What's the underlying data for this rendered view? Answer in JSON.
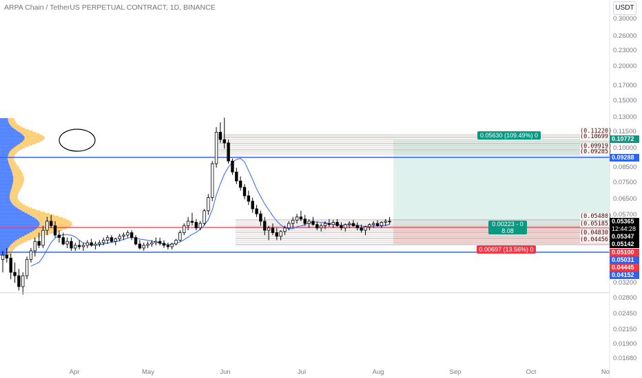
{
  "header": {
    "symbol_title": "ARPA Chain / TetherUS PERPETUAL CONTRACT, 1D, BINANCE"
  },
  "currency_button": "USDT",
  "price_axis_labels": [
    "0.30000",
    "0.26000",
    "0.23000",
    "0.20000",
    "0.17000",
    "0.15000",
    "0.13000",
    "0.11500",
    "0.10000",
    "0.08500",
    "0.07500",
    "0.06500",
    "0.05700",
    "0.03200",
    "0.02800",
    "0.02450",
    "0.02150",
    "0.01900",
    "0.01680"
  ],
  "price_tags": {
    "t1": "0.10772",
    "t2": "0.09288",
    "t3": "0.05365",
    "t3b": "12:44:28",
    "t4": "0.05347",
    "t5": "0.05142",
    "t6": "0.05100",
    "t7": "0.05031",
    "t8": "0.04445",
    "t9": "0.04152"
  },
  "position_labels": {
    "target": "0.05630 (109.49%) 0",
    "entry_a": "0.00223 - 0",
    "entry_b": "8.08",
    "stop": "0.00697 (13.56%) 0"
  },
  "level_labels": [
    "(0.11220)",
    "(0.10699)",
    "(0.09919)",
    "(0.09285)",
    "(0.05480)",
    "(0.05185)",
    "(0.04830)",
    "(0.04456)"
  ],
  "colors": {
    "up_candle": "#ffffff",
    "down_candle": "#000000",
    "vp_up": "#2962ff",
    "vp_down": "#f7c35f",
    "target_fill": "#dff1ec",
    "stop_fill": "#f8d7d7",
    "blue_line": "#2962ff",
    "red_line": "#f23645",
    "green_tag": "#089981"
  },
  "chart_data": {
    "type": "candlestick",
    "title": "ARPA Chain / TetherUS PERPETUAL CONTRACT, 1D, BINANCE",
    "x_ticks": [
      "Apr",
      "May",
      "Jun",
      "Jul",
      "Aug",
      "Sep",
      "Oct",
      "No"
    ],
    "y_scale": "log",
    "ylim": [
      0.0155,
      0.33
    ],
    "series": [
      {
        "name": "",
        "type": "candles",
        "points": [
          [
            1,
            0.039,
            0.042,
            0.035,
            0.0405
          ],
          [
            2,
            0.0405,
            0.043,
            0.038,
            0.0395
          ],
          [
            3,
            0.0395,
            0.041,
            0.033,
            0.035
          ],
          [
            4,
            0.035,
            0.038,
            0.032,
            0.034
          ],
          [
            5,
            0.034,
            0.036,
            0.03,
            0.031
          ],
          [
            6,
            0.031,
            0.035,
            0.029,
            0.034
          ],
          [
            7,
            0.034,
            0.04,
            0.033,
            0.039
          ],
          [
            8,
            0.039,
            0.043,
            0.038,
            0.042
          ],
          [
            9,
            0.042,
            0.047,
            0.04,
            0.0455
          ],
          [
            10,
            0.0455,
            0.049,
            0.043,
            0.044
          ],
          [
            11,
            0.044,
            0.052,
            0.043,
            0.05
          ],
          [
            12,
            0.05,
            0.056,
            0.048,
            0.054
          ],
          [
            13,
            0.054,
            0.057,
            0.051,
            0.052
          ],
          [
            14,
            0.052,
            0.054,
            0.047,
            0.048
          ],
          [
            15,
            0.048,
            0.05,
            0.045,
            0.047
          ],
          [
            16,
            0.047,
            0.049,
            0.044,
            0.0445
          ],
          [
            17,
            0.0445,
            0.047,
            0.043,
            0.0455
          ],
          [
            18,
            0.0455,
            0.047,
            0.042,
            0.043
          ],
          [
            19,
            0.043,
            0.045,
            0.042,
            0.044
          ],
          [
            20,
            0.044,
            0.046,
            0.0425,
            0.0435
          ],
          [
            21,
            0.0435,
            0.045,
            0.042,
            0.044
          ],
          [
            22,
            0.044,
            0.046,
            0.043,
            0.045
          ],
          [
            23,
            0.045,
            0.0465,
            0.0435,
            0.044
          ],
          [
            24,
            0.044,
            0.0455,
            0.0425,
            0.0445
          ],
          [
            25,
            0.0445,
            0.046,
            0.0435,
            0.045
          ],
          [
            26,
            0.045,
            0.047,
            0.044,
            0.046
          ],
          [
            27,
            0.046,
            0.048,
            0.0445,
            0.047
          ],
          [
            28,
            0.047,
            0.048,
            0.045,
            0.0455
          ],
          [
            29,
            0.0455,
            0.047,
            0.044,
            0.0465
          ],
          [
            30,
            0.0465,
            0.0485,
            0.0455,
            0.0475
          ],
          [
            31,
            0.0475,
            0.049,
            0.046,
            0.048
          ],
          [
            32,
            0.048,
            0.05,
            0.047,
            0.049
          ],
          [
            33,
            0.049,
            0.05,
            0.046,
            0.047
          ],
          [
            34,
            0.047,
            0.048,
            0.044,
            0.0445
          ],
          [
            35,
            0.0445,
            0.046,
            0.0425,
            0.043
          ],
          [
            36,
            0.043,
            0.045,
            0.042,
            0.044
          ],
          [
            37,
            0.044,
            0.0455,
            0.043,
            0.0445
          ],
          [
            38,
            0.0445,
            0.046,
            0.0435,
            0.045
          ],
          [
            39,
            0.045,
            0.047,
            0.044,
            0.0455
          ],
          [
            40,
            0.0455,
            0.047,
            0.044,
            0.0448
          ],
          [
            41,
            0.0448,
            0.046,
            0.043,
            0.044
          ],
          [
            42,
            0.044,
            0.045,
            0.0425,
            0.0435
          ],
          [
            43,
            0.0435,
            0.045,
            0.0425,
            0.0445
          ],
          [
            44,
            0.0445,
            0.0465,
            0.044,
            0.046
          ],
          [
            45,
            0.046,
            0.05,
            0.0455,
            0.049
          ],
          [
            46,
            0.049,
            0.053,
            0.048,
            0.052
          ],
          [
            47,
            0.052,
            0.056,
            0.05,
            0.054
          ],
          [
            48,
            0.054,
            0.058,
            0.052,
            0.0535
          ],
          [
            49,
            0.0535,
            0.055,
            0.05,
            0.051
          ],
          [
            50,
            0.051,
            0.054,
            0.05,
            0.053
          ],
          [
            51,
            0.053,
            0.06,
            0.052,
            0.059
          ],
          [
            52,
            0.059,
            0.068,
            0.057,
            0.066
          ],
          [
            53,
            0.066,
            0.09,
            0.064,
            0.088
          ],
          [
            54,
            0.088,
            0.12,
            0.085,
            0.115
          ],
          [
            55,
            0.115,
            0.125,
            0.105,
            0.108
          ],
          [
            56,
            0.108,
            0.13,
            0.1,
            0.105
          ],
          [
            57,
            0.105,
            0.108,
            0.088,
            0.09
          ],
          [
            58,
            0.09,
            0.092,
            0.08,
            0.082
          ],
          [
            59,
            0.082,
            0.085,
            0.074,
            0.076
          ],
          [
            60,
            0.076,
            0.079,
            0.07,
            0.072
          ],
          [
            61,
            0.072,
            0.074,
            0.065,
            0.067
          ],
          [
            62,
            0.067,
            0.07,
            0.062,
            0.064
          ],
          [
            63,
            0.064,
            0.066,
            0.058,
            0.06
          ],
          [
            64,
            0.06,
            0.062,
            0.056,
            0.0575
          ],
          [
            65,
            0.0575,
            0.059,
            0.052,
            0.054
          ],
          [
            66,
            0.054,
            0.056,
            0.048,
            0.05
          ],
          [
            67,
            0.05,
            0.052,
            0.046,
            0.051
          ],
          [
            68,
            0.051,
            0.053,
            0.048,
            0.049
          ],
          [
            69,
            0.049,
            0.051,
            0.046,
            0.0475
          ],
          [
            70,
            0.0475,
            0.05,
            0.046,
            0.0495
          ],
          [
            71,
            0.0495,
            0.052,
            0.048,
            0.051
          ],
          [
            72,
            0.051,
            0.054,
            0.05,
            0.053
          ],
          [
            73,
            0.053,
            0.056,
            0.051,
            0.0545
          ],
          [
            74,
            0.0545,
            0.0575,
            0.053,
            0.056
          ],
          [
            75,
            0.056,
            0.059,
            0.054,
            0.055
          ],
          [
            76,
            0.055,
            0.057,
            0.052,
            0.053
          ],
          [
            77,
            0.053,
            0.055,
            0.051,
            0.054
          ],
          [
            78,
            0.054,
            0.056,
            0.052,
            0.0525
          ],
          [
            79,
            0.0525,
            0.054,
            0.05,
            0.051
          ],
          [
            80,
            0.051,
            0.053,
            0.0495,
            0.052
          ],
          [
            81,
            0.052,
            0.054,
            0.0505,
            0.053
          ],
          [
            82,
            0.053,
            0.055,
            0.0515,
            0.0525
          ],
          [
            83,
            0.0525,
            0.0545,
            0.051,
            0.0535
          ],
          [
            84,
            0.0535,
            0.055,
            0.0515,
            0.052
          ],
          [
            85,
            0.052,
            0.0535,
            0.05,
            0.051
          ],
          [
            86,
            0.051,
            0.053,
            0.0495,
            0.0525
          ],
          [
            87,
            0.0525,
            0.054,
            0.051,
            0.053
          ],
          [
            88,
            0.053,
            0.0545,
            0.0515,
            0.052
          ],
          [
            89,
            0.052,
            0.0535,
            0.05,
            0.051
          ],
          [
            90,
            0.051,
            0.0525,
            0.049,
            0.05
          ],
          [
            91,
            0.05,
            0.052,
            0.048,
            0.0515
          ],
          [
            92,
            0.0515,
            0.053,
            0.05,
            0.0525
          ],
          [
            93,
            0.0525,
            0.054,
            0.051,
            0.053
          ],
          [
            94,
            0.053,
            0.0545,
            0.0515,
            0.052
          ],
          [
            95,
            0.052,
            0.054,
            0.051,
            0.0535
          ],
          [
            96,
            0.0535,
            0.055,
            0.052,
            0.054
          ],
          [
            97,
            0.054,
            0.056,
            0.0525,
            0.0537
          ]
        ]
      },
      {
        "name": "",
        "type": "line",
        "role": "moving-average"
      }
    ],
    "levels": {
      "blue": [
        0.09288,
        0.04152
      ],
      "red": [
        0.051
      ]
    },
    "position": {
      "entry": 0.05142,
      "target": 0.10772,
      "stop": 0.04445
    },
    "grid": false,
    "legend": "none"
  }
}
